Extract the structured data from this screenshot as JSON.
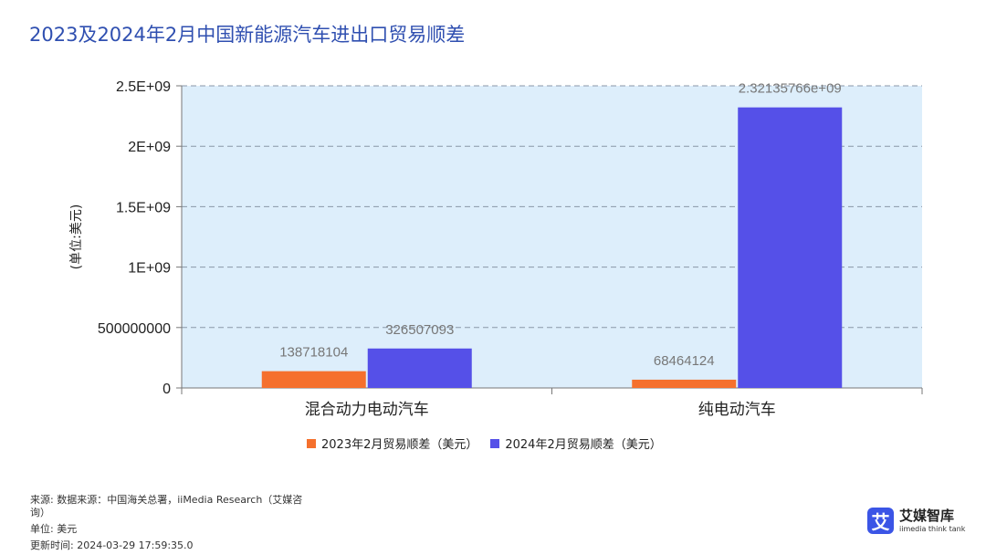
{
  "title": "2023及2024年2月中国新能源汽车进出口贸易顺差",
  "colors": {
    "series_2023": "#f5702d",
    "series_2024": "#5550e8",
    "plot_bg": "#ddeefb",
    "title": "#2f4fb0"
  },
  "chart_data": {
    "type": "bar",
    "categories": [
      "混合动力电动汽车",
      "纯电动汽车"
    ],
    "series": [
      {
        "name": "2023年2月贸易顺差（美元）",
        "values": [
          138718104,
          68464124
        ],
        "labels": [
          "138718104",
          "68464124"
        ]
      },
      {
        "name": "2024年2月贸易顺差（美元）",
        "values": [
          326507093,
          2321357660
        ],
        "labels": [
          "326507093",
          "2.32135766e+09"
        ]
      }
    ],
    "ylabel": "(单位:美元)",
    "ylim": [
      0,
      2500000000
    ],
    "yticks": [
      0,
      500000000,
      1000000000,
      1500000000,
      2000000000,
      2500000000
    ],
    "ytick_labels": [
      "0",
      "500000000",
      "1E+09",
      "1.5E+09",
      "2E+09",
      "2.5E+09"
    ],
    "grid": true,
    "legend": "bottom"
  },
  "footer": {
    "source_line1": "来源: 数据来源：中国海关总署，iiMedia Research（艾媒咨",
    "source_line2": "询）",
    "unit": "单位: 美元",
    "updated": "更新时间: 2024-03-29 17:59:35.0"
  },
  "logo": {
    "mark": "艾",
    "name": "艾媒智库",
    "sub": "iimedia think tank"
  }
}
